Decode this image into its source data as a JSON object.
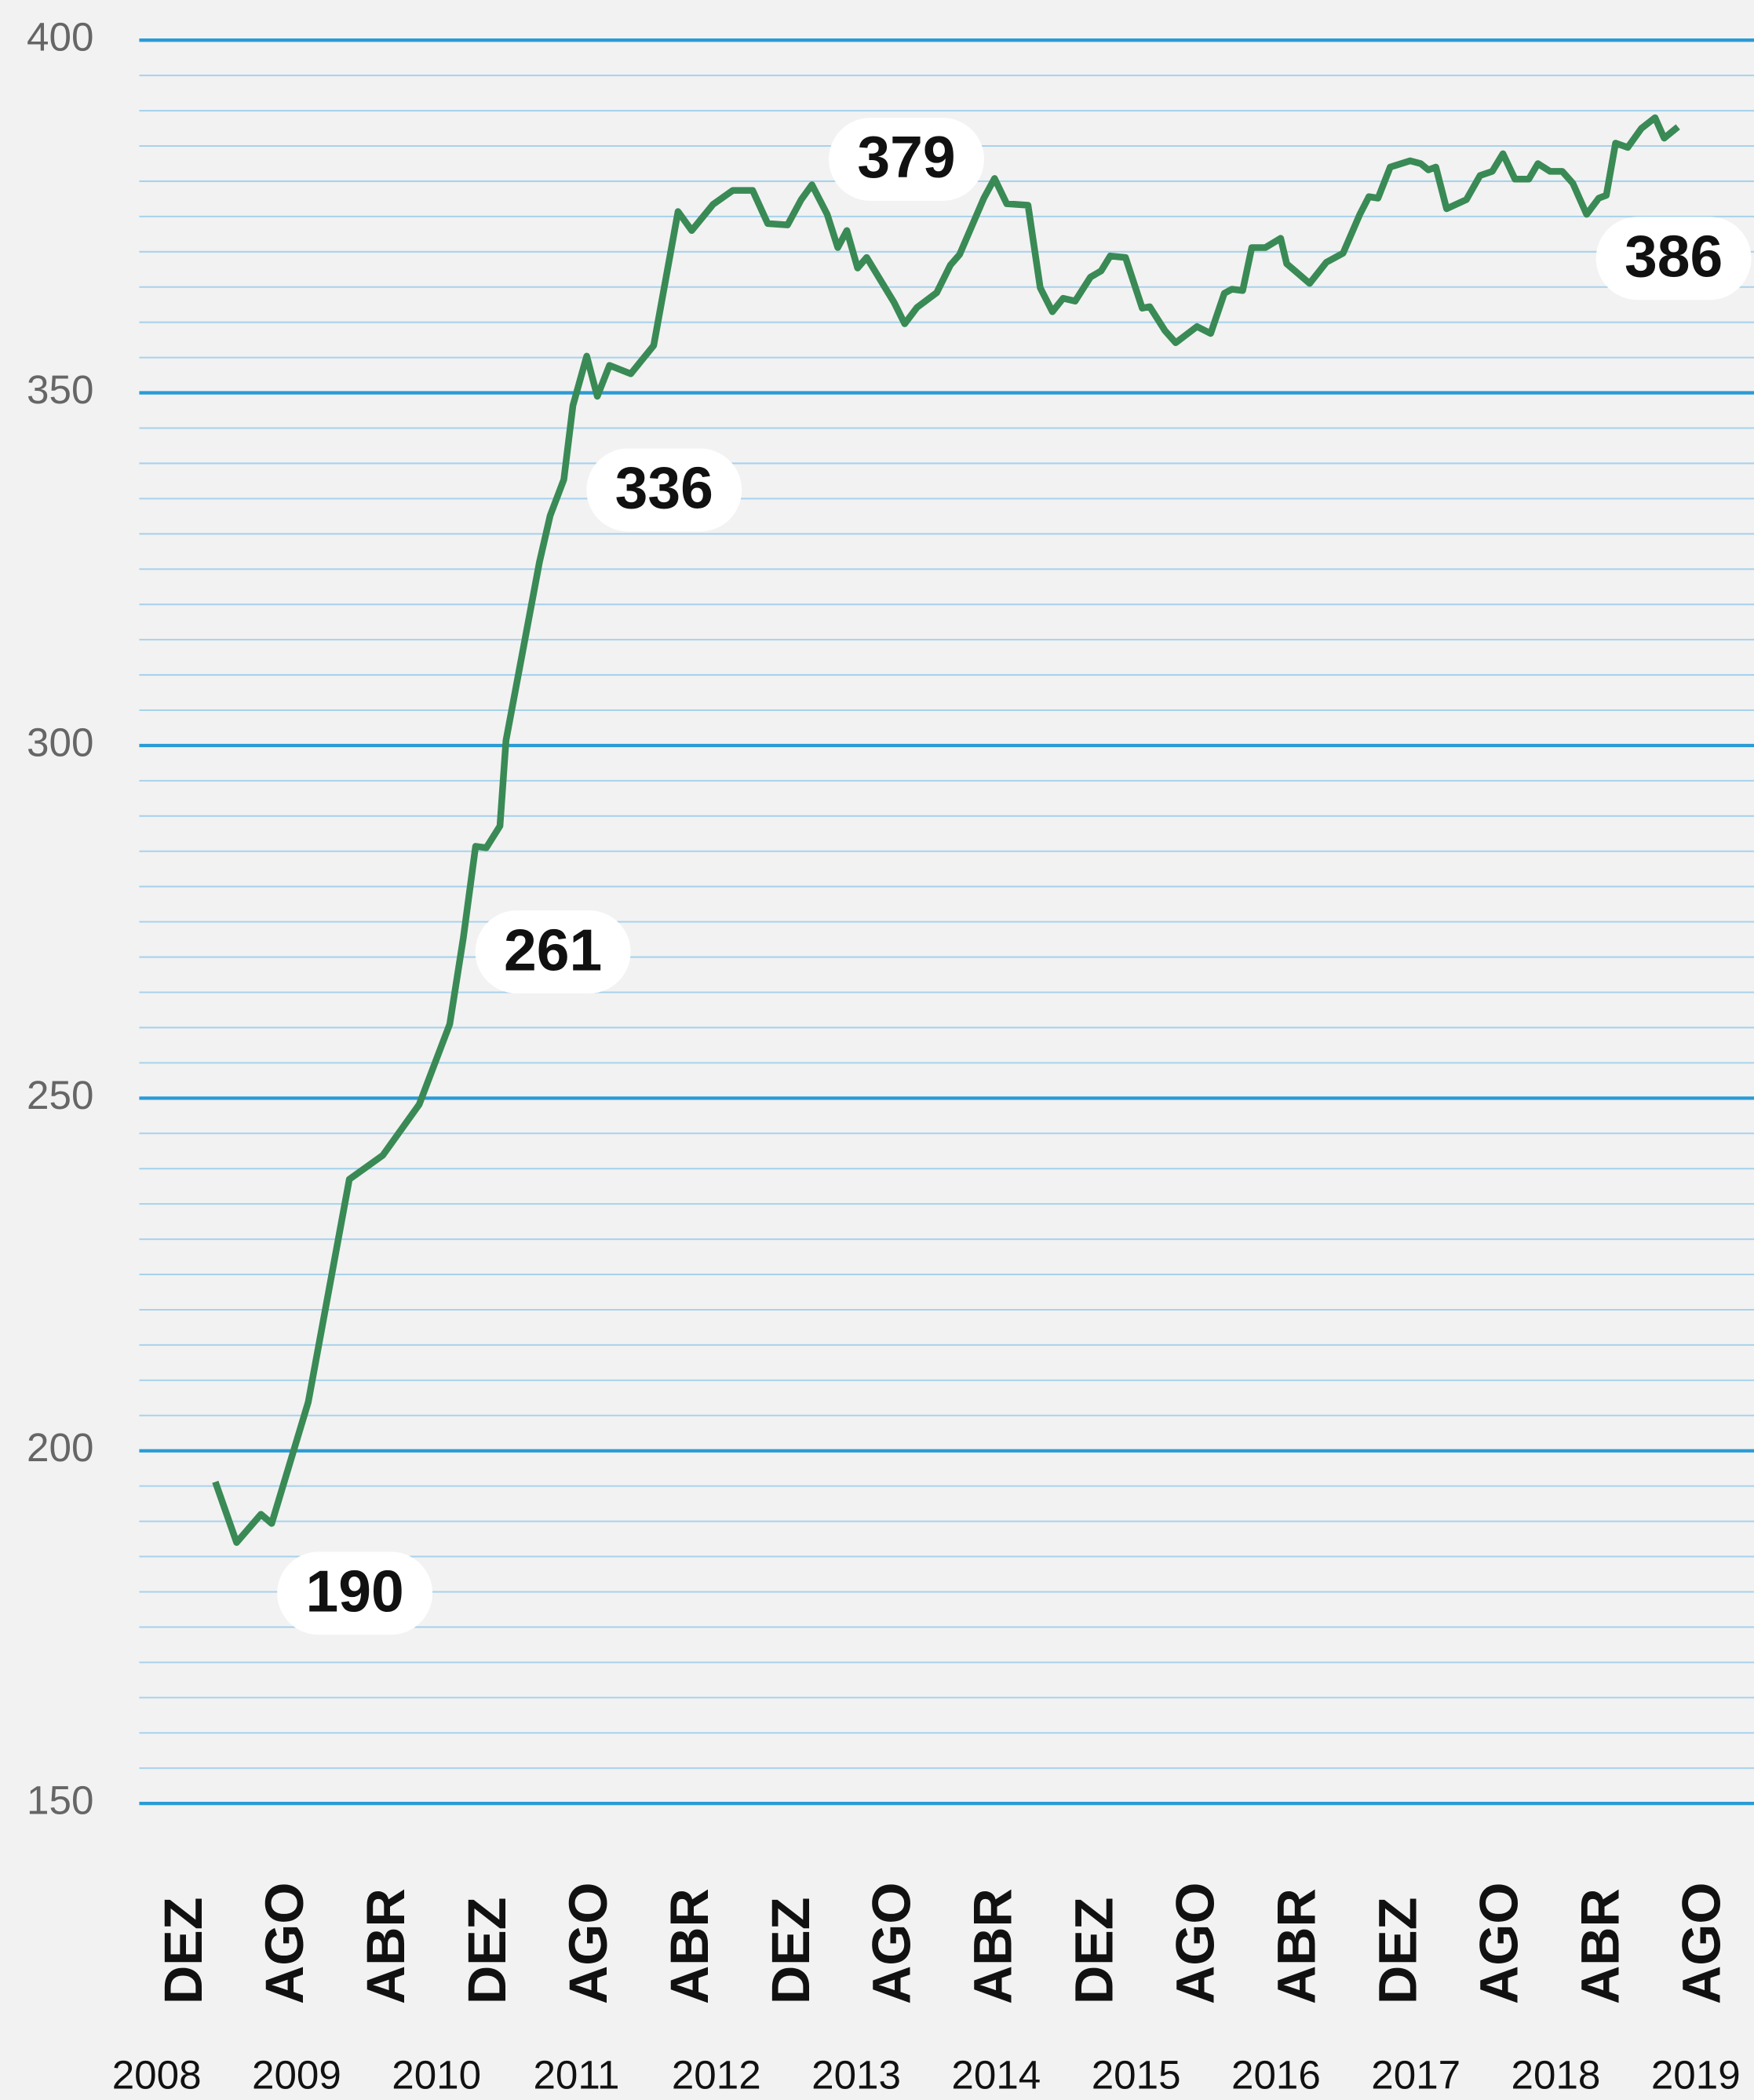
{
  "chart_data": {
    "type": "line",
    "x": [
      2009.1,
      2009.24,
      2009.4,
      2009.47,
      2009.71,
      2009.98,
      2010.2,
      2010.44,
      2010.64,
      2010.73,
      2010.81,
      2010.88,
      2010.97,
      2011.01,
      2011.23,
      2011.3,
      2011.39,
      2011.45,
      2011.54,
      2011.61,
      2011.69,
      2011.83,
      2011.98,
      2012.14,
      2012.23,
      2012.37,
      2012.5,
      2012.63,
      2012.73,
      2012.86,
      2012.95,
      2013.02,
      2013.12,
      2013.19,
      2013.25,
      2013.32,
      2013.38,
      2013.56,
      2013.63,
      2013.71,
      2013.84,
      2013.93,
      2013.99,
      2014.15,
      2014.22,
      2014.3,
      2014.44,
      2014.52,
      2014.6,
      2014.67,
      2014.75,
      2014.85,
      2014.92,
      2014.98,
      2015.08,
      2015.19,
      2015.24,
      2015.34,
      2015.41,
      2015.55,
      2015.64,
      2015.73,
      2015.78,
      2015.85,
      2015.91,
      2016.0,
      2016.1,
      2016.14,
      2016.29,
      2016.4,
      2016.51,
      2016.62,
      2016.68,
      2016.74,
      2016.82,
      2016.95,
      2017.02,
      2017.07,
      2017.12,
      2017.19,
      2017.32,
      2017.41,
      2017.49,
      2017.56,
      2017.64,
      2017.73,
      2017.79,
      2017.87,
      2017.95,
      2018.02,
      2018.11,
      2018.19,
      2018.24,
      2018.3,
      2018.38,
      2018.47,
      2018.56,
      2018.62,
      2018.71
    ],
    "series": [
      {
        "color": "#3a8a55",
        "values": [
          195.6,
          187.0,
          191.0,
          189.7,
          206.9,
          238.5,
          241.9,
          249.1,
          260.5,
          272.8,
          285.7,
          285.5,
          288.6,
          300.7,
          326.0,
          332.6,
          337.7,
          348.2,
          355.2,
          349.5,
          353.9,
          352.7,
          356.7,
          375.7,
          373.0,
          376.7,
          378.7,
          378.7,
          374.0,
          373.8,
          377.4,
          379.5,
          375.3,
          370.6,
          373.0,
          367.7,
          369.2,
          362.8,
          359.8,
          362.1,
          364.2,
          368.1,
          369.6,
          377.6,
          380.4,
          376.8,
          376.6,
          364.9,
          361.5,
          363.4,
          363.0,
          366.4,
          367.3,
          369.4,
          369.2,
          362.0,
          362.2,
          358.8,
          357.1,
          359.4,
          358.4,
          364.1,
          364.7,
          364.5,
          370.6,
          370.6,
          371.9,
          368.3,
          365.5,
          368.5,
          369.8,
          375.3,
          377.8,
          377.6,
          382.0,
          382.9,
          382.5,
          381.6,
          382.0,
          376.1,
          377.4,
          380.8,
          381.4,
          383.9,
          380.3,
          380.3,
          382.5,
          381.4,
          381.4,
          379.7,
          375.3,
          377.6,
          378.0,
          385.4,
          384.8,
          387.5,
          389.0,
          386.1,
          387.7
        ]
      }
    ],
    "xlim": [
      2008.6,
      2019.21
    ],
    "ylim": [
      150,
      400
    ],
    "yticks": [
      150,
      200,
      250,
      300,
      350,
      400
    ],
    "minor_yticks": [
      155,
      160,
      165,
      170,
      175,
      180,
      185,
      190,
      195,
      205,
      210,
      215,
      220,
      225,
      230,
      235,
      240,
      245,
      255,
      260,
      265,
      270,
      275,
      280,
      285,
      290,
      295,
      305,
      310,
      315,
      320,
      325,
      330,
      335,
      340,
      345,
      355,
      360,
      365,
      370,
      375,
      380,
      385,
      390,
      395
    ],
    "month_labels": [
      "DEZ",
      "AGO",
      "ABR",
      "DEZ",
      "AGO",
      "ABR",
      "DEZ",
      "AGO",
      "ABR",
      "DEZ",
      "AGO",
      "ABR",
      "DEZ",
      "AGO",
      "ABR",
      "AGO"
    ],
    "year_labels": [
      "2008",
      "2009",
      "2010",
      "2011",
      "2012",
      "2013",
      "2014",
      "2015",
      "2016",
      "2017",
      "2018",
      "2019"
    ],
    "annotations": [
      "190",
      "261",
      "336",
      "379",
      "386"
    ],
    "grid": true
  }
}
